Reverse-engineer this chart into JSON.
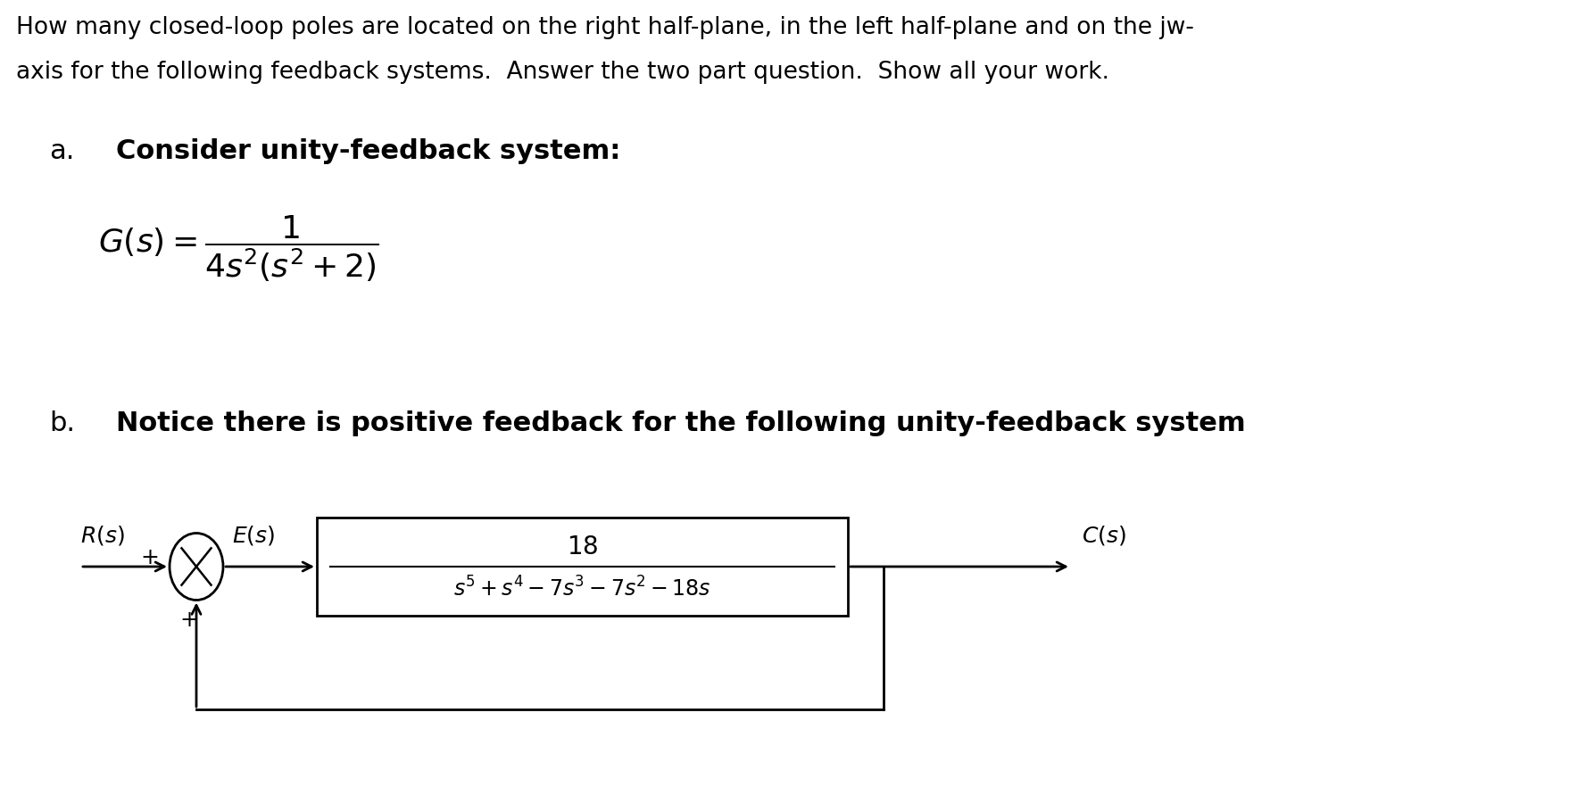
{
  "bg_color": "#ffffff",
  "text_color": "#000000",
  "header_line1": "How many closed-loop poles are located on the right half-plane, in the left half-plane and on the jw-",
  "header_line2": "axis for the following feedback systems.  Answer the two part question.  Show all your work.",
  "part_a_label": "a.",
  "part_a_text": "Consider unity-feedback system:",
  "part_b_label": "b.",
  "part_b_text": "Notice there is positive feedback for the following unity-feedback system",
  "header_fontsize": 19,
  "label_fontsize": 22,
  "section_fontsize": 22,
  "formula_fontsize": 26,
  "diagram_fontsize": 18,
  "fig_width": 17.67,
  "fig_height": 9.1,
  "dpi": 100
}
